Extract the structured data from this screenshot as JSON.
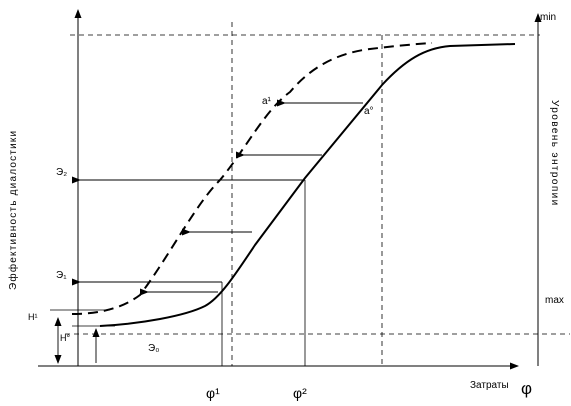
{
  "axes": {
    "y_title": "Эффективность диалостики",
    "x_title": "Затраты",
    "x_symbol": "φ",
    "right_title": "Уровень энтропии"
  },
  "right_scale": {
    "top": "min",
    "bottom": "max"
  },
  "y_levels": {
    "e2": "Э₂",
    "e1": "Э₁",
    "e0": "Э₀",
    "h1": "H¹",
    "h0": "H°"
  },
  "x_marks": {
    "phi1": "φ¹",
    "phi2": "φ²"
  },
  "points": {
    "a1": "a¹",
    "a0": "a°"
  }
}
